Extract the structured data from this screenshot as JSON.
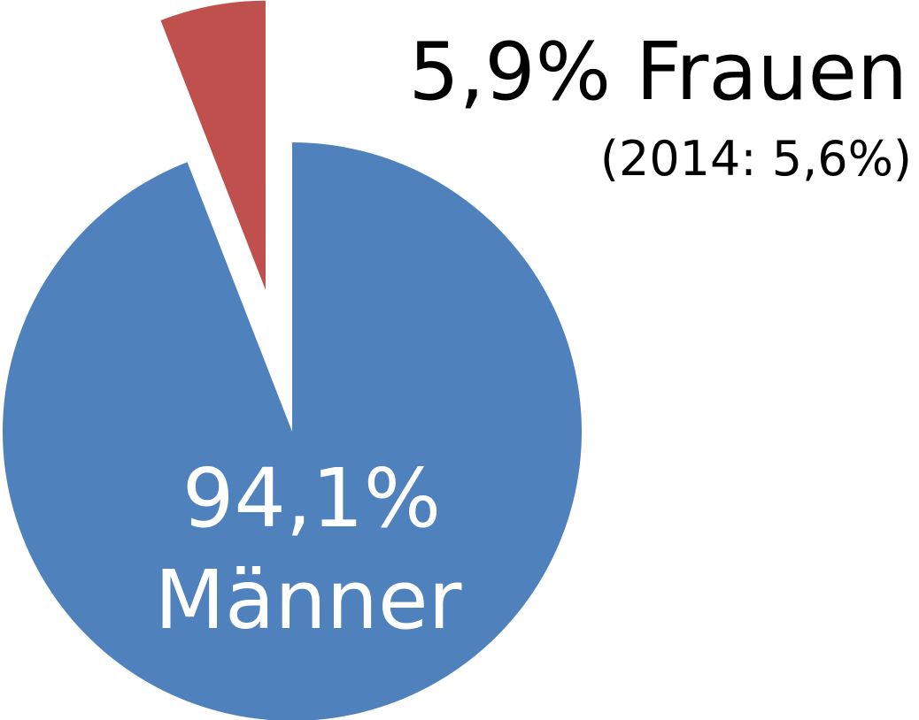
{
  "chart_data": {
    "type": "pie",
    "categories": [
      "Männer",
      "Frauen"
    ],
    "values": [
      94.1,
      5.9
    ],
    "value_labels": [
      "94,1%",
      "5,9%"
    ],
    "colors": [
      "#4f81bd",
      "#c0504d"
    ],
    "annotation": "(2014: 5,6%)"
  }
}
